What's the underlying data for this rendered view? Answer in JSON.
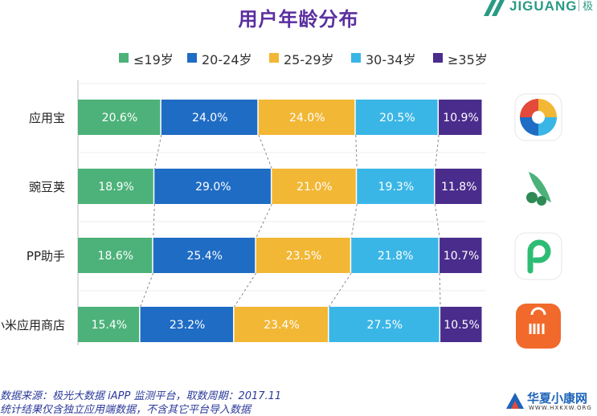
{
  "page": {
    "title": "用户年龄分布",
    "brand": "JIGUANG",
    "brand_cn": "极",
    "notes": [
      "数据来源：极光大数据 iAPP 监测平台，取数周期：2017.11",
      "统计结果仅含独立应用端数据，不含其它平台导入数据"
    ],
    "watermark": {
      "text": "华夏小康网",
      "url": "WWW.HXKXW.ORG"
    },
    "app_icons": [
      "yingyongbao-icon",
      "wandoujia-icon",
      "pp-assistant-icon",
      "xiaomi-store-icon"
    ]
  },
  "chart_data": {
    "type": "bar",
    "orientation": "horizontal",
    "stacked": true,
    "categories": [
      "应用宝",
      "豌豆荚",
      "PP助手",
      "小米应用商店"
    ],
    "series": [
      {
        "name": "≤19岁",
        "color": "#4cb27a",
        "values": [
          20.6,
          18.9,
          18.6,
          15.4
        ]
      },
      {
        "name": "20-24岁",
        "color": "#1f6cc4",
        "values": [
          24.0,
          29.0,
          25.4,
          23.2
        ]
      },
      {
        "name": "25-29岁",
        "color": "#f2b735",
        "values": [
          24.0,
          21.0,
          23.5,
          23.4
        ]
      },
      {
        "name": "30-34岁",
        "color": "#3ab6e6",
        "values": [
          20.5,
          19.3,
          21.8,
          27.5
        ]
      },
      {
        "name": "≥35岁",
        "color": "#4a2c8c",
        "values": [
          10.9,
          11.8,
          10.7,
          10.5
        ]
      }
    ],
    "data_labels": [
      [
        "20.6%",
        "24.0%",
        "24.0%",
        "20.5%",
        "10.9%"
      ],
      [
        "18.9%",
        "29.0%",
        "21.0%",
        "19.3%",
        "11.8%"
      ],
      [
        "18.6%",
        "25.4%",
        "23.5%",
        "21.8%",
        "10.7%"
      ],
      [
        "15.4%",
        "23.2%",
        "23.4%",
        "27.5%",
        "10.5%"
      ]
    ],
    "legend": "top",
    "grid": false
  }
}
